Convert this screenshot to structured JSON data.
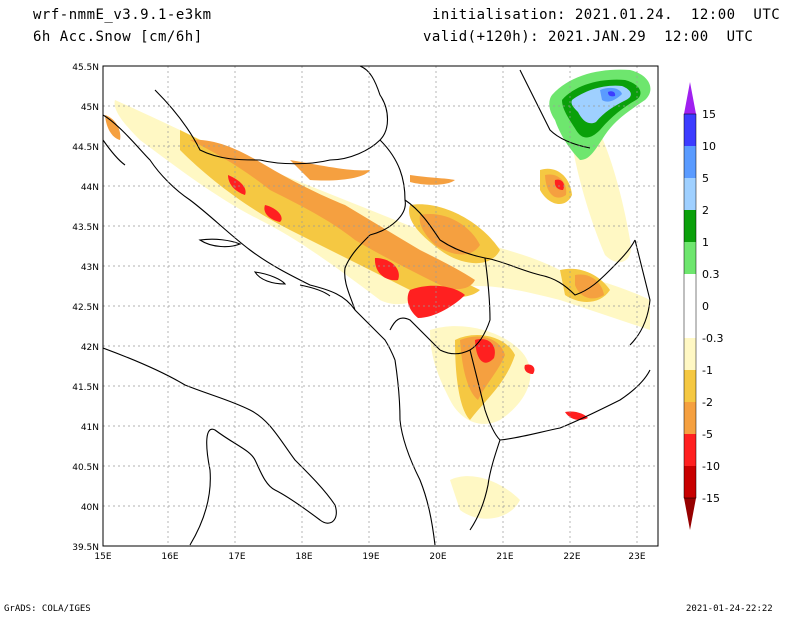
{
  "header": {
    "model": "wrf-nmmE_v3.9.1-e3km",
    "field": "6h Acc.Snow [cm/6h]",
    "init": "initialisation: 2021.01.24.  12:00  UTC",
    "valid": "valid(+120h): 2021.JAN.29  12:00  UTC"
  },
  "footer": {
    "credit": "GrADS: COLA/IGES",
    "timestamp": "2021-01-24-22:22"
  },
  "axes": {
    "lon_labels": [
      "15E",
      "16E",
      "17E",
      "18E",
      "19E",
      "20E",
      "21E",
      "22E",
      "23E"
    ],
    "lat_labels": [
      "45.5N",
      "45N",
      "44.5N",
      "44N",
      "43.5N",
      "43N",
      "42.5N",
      "42N",
      "41.5N",
      "41N",
      "40.5N",
      "40N",
      "39.5N"
    ]
  },
  "colorbar": {
    "labels": [
      "15",
      "10",
      "5",
      "2",
      "1",
      "0.3",
      "0",
      "-0.3",
      "-1",
      "-2",
      "-5",
      "-10",
      "-15"
    ],
    "colors": [
      "#a020f0",
      "#3c3cff",
      "#5a9bff",
      "#9fd0ff",
      "#0aa00a",
      "#6ee66e",
      "#ffffff",
      "#fff8c4",
      "#f5c842",
      "#f5a040",
      "#ff2020",
      "#c80000",
      "#960000"
    ]
  }
}
